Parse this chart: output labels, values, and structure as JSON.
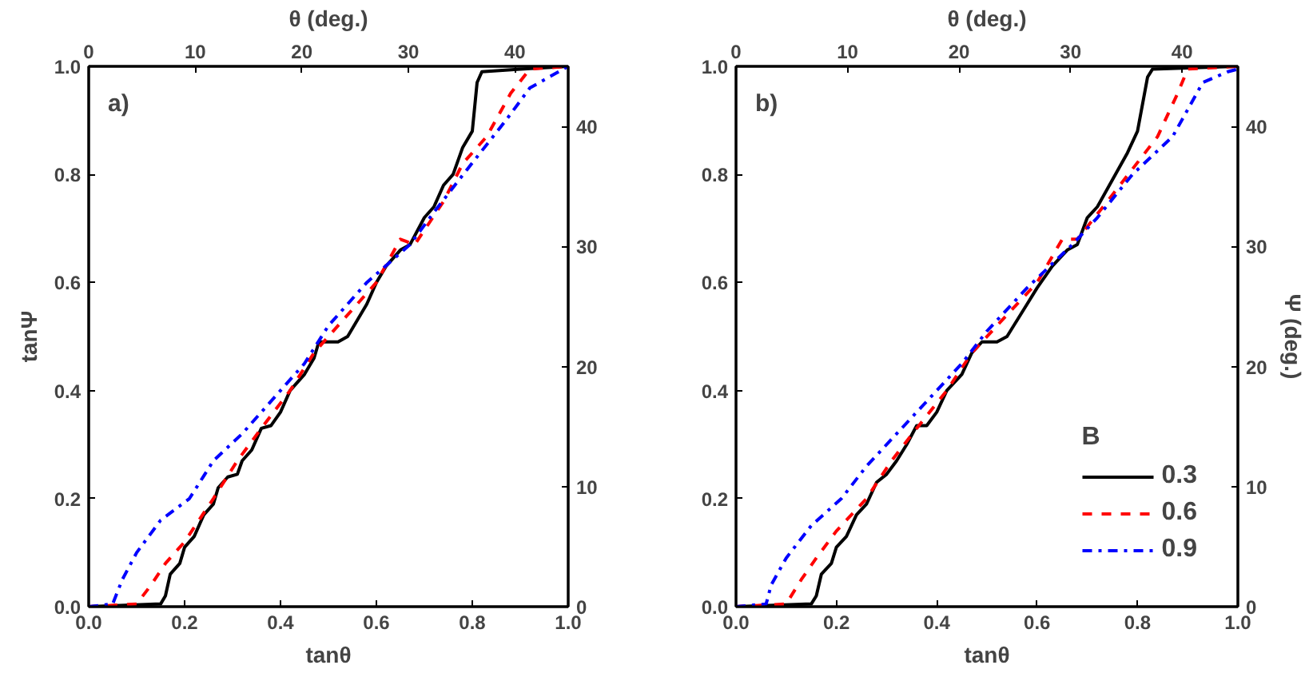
{
  "chart_data": [
    {
      "type": "line",
      "annotations": [
        "a)"
      ],
      "xlabel": "tanθ",
      "ylabel": "tanΨ",
      "x2label": "θ (deg.)",
      "xlim": [
        0,
        1
      ],
      "xticks": [
        {
          "value": 0,
          "label": "0.0"
        },
        {
          "value": 0.2,
          "label": "0.2"
        },
        {
          "value": 0.4,
          "label": "0.4"
        },
        {
          "value": 0.6,
          "label": "0.6"
        },
        {
          "value": 0.8,
          "label": "0.8"
        },
        {
          "value": 1,
          "label": "1.0"
        }
      ],
      "ylim": [
        0,
        1
      ],
      "yticks": [
        {
          "value": 0,
          "label": "0.0"
        },
        {
          "value": 0.2,
          "label": "0.2"
        },
        {
          "value": 0.4,
          "label": "0.4"
        },
        {
          "value": 0.6,
          "label": "0.6"
        },
        {
          "value": 0.8,
          "label": "0.8"
        },
        {
          "value": 1,
          "label": "1.0"
        }
      ],
      "x2lim": [
        0,
        45
      ],
      "x2ticks": [
        0,
        10,
        20,
        30,
        40
      ],
      "y2lim": [
        0,
        45
      ],
      "y2ticks": [
        0,
        10,
        20,
        30,
        40
      ],
      "grid": false,
      "legend": false,
      "series": [
        {
          "color": "#000000",
          "line_style": "solid",
          "x": [
            0,
            0.15,
            0.16,
            0.17,
            0.19,
            0.2,
            0.22,
            0.24,
            0.26,
            0.27,
            0.29,
            0.31,
            0.32,
            0.34,
            0.36,
            0.38,
            0.4,
            0.42,
            0.45,
            0.47,
            0.48,
            0.52,
            0.54,
            0.56,
            0.58,
            0.6,
            0.62,
            0.65,
            0.67,
            0.7,
            0.72,
            0.74,
            0.76,
            0.78,
            0.8,
            0.81,
            0.82,
            0.9,
            1.0
          ],
          "values": [
            0,
            0.005,
            0.02,
            0.06,
            0.08,
            0.11,
            0.13,
            0.17,
            0.19,
            0.22,
            0.24,
            0.245,
            0.27,
            0.29,
            0.33,
            0.335,
            0.36,
            0.4,
            0.43,
            0.46,
            0.49,
            0.49,
            0.5,
            0.53,
            0.56,
            0.6,
            0.63,
            0.66,
            0.67,
            0.72,
            0.74,
            0.78,
            0.8,
            0.85,
            0.88,
            0.97,
            0.99,
            0.995,
            1.0
          ]
        },
        {
          "color": "#ff0000",
          "line_style": "dashed",
          "x": [
            0,
            0.1,
            0.13,
            0.16,
            0.2,
            0.26,
            0.31,
            0.36,
            0.42,
            0.47,
            0.53,
            0.6,
            0.65,
            0.68,
            0.74,
            0.78,
            0.83,
            0.88,
            0.92,
            1.0
          ],
          "values": [
            0,
            0.005,
            0.04,
            0.08,
            0.12,
            0.2,
            0.27,
            0.33,
            0.4,
            0.47,
            0.53,
            0.6,
            0.68,
            0.67,
            0.75,
            0.82,
            0.87,
            0.95,
            0.995,
            1.0
          ]
        },
        {
          "color": "#0000ff",
          "line_style": "dashdot",
          "x": [
            0,
            0.05,
            0.07,
            0.1,
            0.15,
            0.21,
            0.26,
            0.32,
            0.38,
            0.45,
            0.5,
            0.58,
            0.67,
            0.72,
            0.79,
            0.87,
            0.92,
            0.98,
            1.0
          ],
          "values": [
            0,
            0.005,
            0.05,
            0.1,
            0.16,
            0.2,
            0.27,
            0.32,
            0.38,
            0.45,
            0.52,
            0.6,
            0.67,
            0.73,
            0.81,
            0.9,
            0.96,
            0.99,
            1.0
          ]
        }
      ]
    },
    {
      "type": "line",
      "annotations": [
        "b)"
      ],
      "xlabel": "tanθ",
      "x2label": "θ (deg.)",
      "y2label": "Ψ (deg.)",
      "legend_title": "B",
      "xlim": [
        0,
        1
      ],
      "xticks": [
        {
          "value": 0,
          "label": "0.0"
        },
        {
          "value": 0.2,
          "label": "0.2"
        },
        {
          "value": 0.4,
          "label": "0.4"
        },
        {
          "value": 0.6,
          "label": "0.6"
        },
        {
          "value": 0.8,
          "label": "0.8"
        },
        {
          "value": 1,
          "label": "1.0"
        }
      ],
      "ylim": [
        0,
        1
      ],
      "yticks": [
        {
          "value": 0,
          "label": "0.0"
        },
        {
          "value": 0.2,
          "label": "0.2"
        },
        {
          "value": 0.4,
          "label": "0.4"
        },
        {
          "value": 0.6,
          "label": "0.6"
        },
        {
          "value": 0.8,
          "label": "0.8"
        },
        {
          "value": 1,
          "label": "1.0"
        }
      ],
      "x2lim": [
        0,
        45
      ],
      "x2ticks": [
        0,
        10,
        20,
        30,
        40
      ],
      "y2lim": [
        0,
        45
      ],
      "y2ticks": [
        0,
        10,
        20,
        30,
        40
      ],
      "grid": false,
      "legend": "bottom right",
      "series": [
        {
          "name": "0.3",
          "color": "#000000",
          "line_style": "solid",
          "x": [
            0,
            0.15,
            0.16,
            0.17,
            0.19,
            0.2,
            0.22,
            0.24,
            0.26,
            0.28,
            0.3,
            0.32,
            0.34,
            0.36,
            0.38,
            0.4,
            0.42,
            0.45,
            0.47,
            0.49,
            0.52,
            0.54,
            0.56,
            0.58,
            0.6,
            0.63,
            0.66,
            0.68,
            0.7,
            0.72,
            0.75,
            0.78,
            0.8,
            0.82,
            0.83,
            0.9,
            1.0
          ],
          "values": [
            0,
            0.005,
            0.02,
            0.06,
            0.08,
            0.11,
            0.13,
            0.17,
            0.19,
            0.23,
            0.245,
            0.27,
            0.3,
            0.335,
            0.335,
            0.36,
            0.4,
            0.43,
            0.47,
            0.49,
            0.49,
            0.5,
            0.53,
            0.56,
            0.59,
            0.63,
            0.66,
            0.67,
            0.72,
            0.74,
            0.79,
            0.84,
            0.88,
            0.98,
            0.995,
            0.997,
            1.0
          ]
        },
        {
          "name": "0.6",
          "color": "#ff0000",
          "line_style": "dashed",
          "x": [
            0,
            0.1,
            0.13,
            0.16,
            0.2,
            0.26,
            0.31,
            0.36,
            0.42,
            0.47,
            0.53,
            0.6,
            0.65,
            0.68,
            0.74,
            0.79,
            0.84,
            0.88,
            0.9,
            1.0
          ],
          "values": [
            0,
            0.005,
            0.05,
            0.09,
            0.14,
            0.2,
            0.27,
            0.33,
            0.4,
            0.47,
            0.53,
            0.6,
            0.68,
            0.68,
            0.75,
            0.81,
            0.87,
            0.95,
            0.995,
            1.0
          ]
        },
        {
          "name": "0.9",
          "color": "#0000ff",
          "line_style": "dashdot",
          "x": [
            0,
            0.06,
            0.07,
            0.1,
            0.15,
            0.21,
            0.26,
            0.32,
            0.38,
            0.45,
            0.5,
            0.58,
            0.67,
            0.72,
            0.79,
            0.87,
            0.93,
            0.98,
            1.0
          ],
          "values": [
            0,
            0.005,
            0.04,
            0.09,
            0.15,
            0.2,
            0.26,
            0.32,
            0.38,
            0.45,
            0.51,
            0.59,
            0.67,
            0.72,
            0.8,
            0.87,
            0.97,
            0.99,
            0.995
          ]
        }
      ]
    }
  ]
}
